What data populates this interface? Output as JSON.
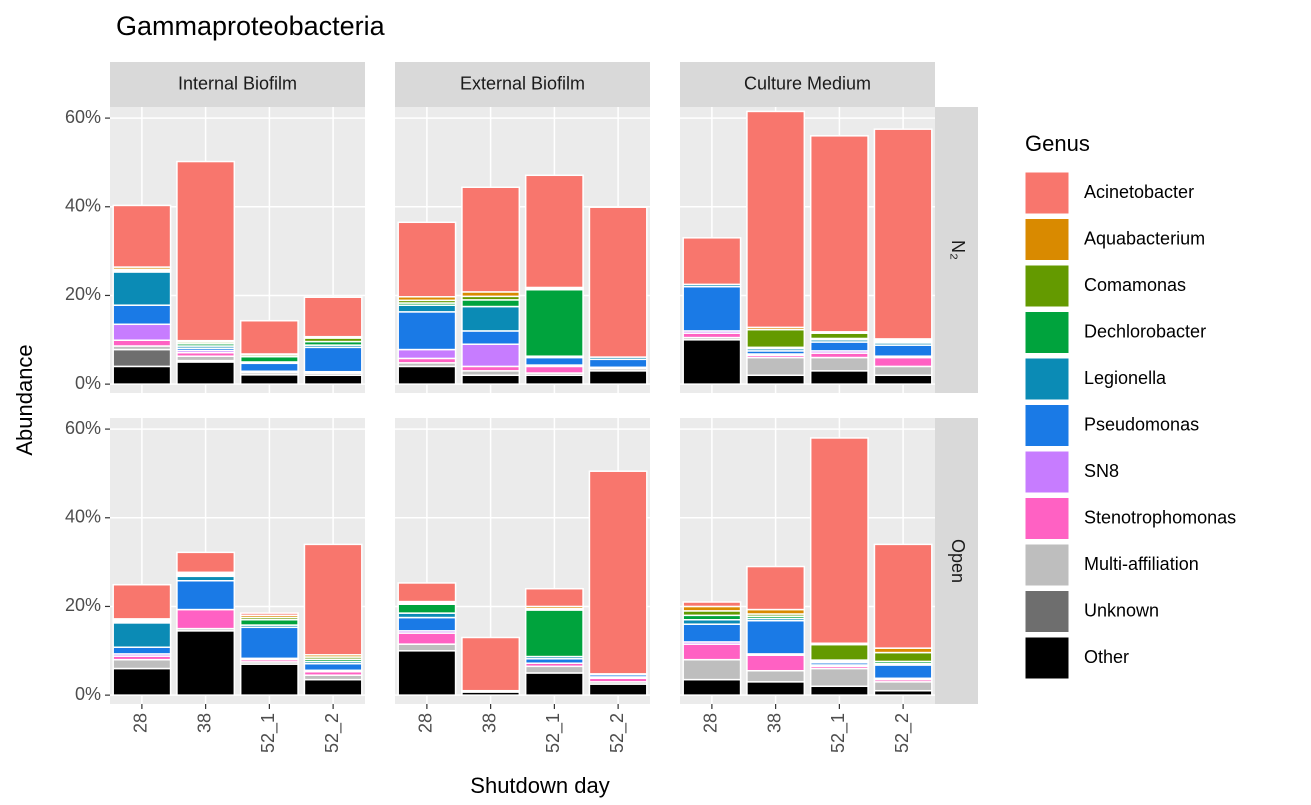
{
  "chart_data": {
    "type": "bar",
    "stacked": true,
    "title": "Gammaproteobacteria",
    "xlabel": "Shutdown day",
    "ylabel": "Abundance",
    "legend_title": "Genus",
    "legend_position": "right",
    "grid": true,
    "categories": [
      "28",
      "38",
      "52_1",
      "52_2"
    ],
    "columns": [
      "Internal Biofilm",
      "External Biofilm",
      "Culture Medium"
    ],
    "rows": [
      "N₂",
      "Open"
    ],
    "ylim": [
      -2,
      62.5
    ],
    "yticks": [
      {
        "value": 0,
        "label": "0%"
      },
      {
        "value": 20,
        "label": "20%"
      },
      {
        "value": 40,
        "label": "40%"
      },
      {
        "value": 60,
        "label": "60%"
      }
    ],
    "series": [
      {
        "name": "Acinetobacter",
        "color": "#f8766d"
      },
      {
        "name": "Aquabacterium",
        "color": "#d98a00"
      },
      {
        "name": "Comamonas",
        "color": "#649a00"
      },
      {
        "name": "Dechlorobacter",
        "color": "#00a33d"
      },
      {
        "name": "Legionella",
        "color": "#0b8bb5"
      },
      {
        "name": "Pseudomonas",
        "color": "#1a7ae6"
      },
      {
        "name": "SN8",
        "color": "#c77cff"
      },
      {
        "name": "Stenotrophomonas",
        "color": "#ff61c3"
      },
      {
        "name": "Multi-affiliation",
        "color": "#bebebe"
      },
      {
        "name": "Unknown",
        "color": "#6e6e6e"
      },
      {
        "name": "Other",
        "color": "#000000"
      }
    ],
    "panels": [
      {
        "values": [
          [
            13.9,
            0.5,
            0.3,
            0.3,
            7.5,
            4.3,
            3.6,
            1.3,
            0.8,
            3.8,
            4
          ],
          [
            40.4,
            0.3,
            0.4,
            0.5,
            0.5,
            0.5,
            0.5,
            0.8,
            1,
            0.3,
            5
          ],
          [
            7.5,
            0.2,
            0.4,
            1.2,
            0.3,
            1.8,
            0,
            0.3,
            0.5,
            0,
            2.1
          ],
          [
            8.9,
            0.3,
            0.8,
            0.8,
            0.5,
            5.5,
            0,
            0.3,
            0.5,
            0,
            2
          ]
        ]
      },
      {
        "values": [
          [
            16.8,
            0.8,
            0.6,
            0.5,
            1.5,
            8.5,
            2,
            1,
            0.8,
            0,
            4
          ],
          [
            23.6,
            1,
            0.8,
            1.5,
            5.5,
            3,
            5,
            1,
            1,
            0,
            2
          ],
          [
            25.3,
            0.2,
            0.3,
            15,
            0.3,
            1.7,
            0.3,
            1.5,
            0.5,
            0,
            2
          ],
          [
            33.8,
            0,
            0,
            0,
            0.5,
            1.8,
            0,
            0.3,
            0.5,
            0,
            3
          ]
        ]
      },
      {
        "values": [
          [
            10.5,
            0,
            0,
            0,
            0.5,
            10,
            0.5,
            1,
            0.5,
            0,
            10
          ],
          [
            48.7,
            0.5,
            4,
            0.3,
            0.5,
            0.7,
            0.3,
            0.5,
            4,
            0,
            2
          ],
          [
            44.2,
            0.3,
            1.2,
            0.3,
            0.5,
            2,
            0.5,
            1,
            3,
            0,
            3
          ],
          [
            47.3,
            0.3,
            0.3,
            0.3,
            0.5,
            2.5,
            0.3,
            2,
            2,
            0,
            2
          ]
        ]
      },
      {
        "values": [
          [
            7.7,
            0.3,
            0.3,
            0.3,
            5.5,
            1.5,
            0.5,
            0.8,
            2,
            0,
            6
          ],
          [
            4.5,
            0.3,
            0.3,
            0.3,
            1,
            6.5,
            0,
            4.3,
            0.5,
            0,
            14.5
          ],
          [
            0.5,
            0.5,
            0.5,
            1.2,
            0.5,
            7,
            0.3,
            0.5,
            0.5,
            0,
            7
          ],
          [
            24.9,
            0.5,
            0.5,
            0.5,
            0.5,
            1.5,
            0.3,
            0.8,
            1,
            0,
            3.5
          ]
        ]
      },
      {
        "values": [
          [
            4.2,
            0.3,
            0.3,
            2,
            1,
            3,
            0.5,
            2.5,
            1.5,
            0,
            10
          ],
          [
            12,
            0,
            0,
            0,
            0,
            0,
            0,
            0,
            0.3,
            0,
            0.7
          ],
          [
            4,
            0.5,
            0.3,
            10.5,
            0.5,
            1,
            0,
            0.7,
            1.5,
            0,
            5
          ],
          [
            45.7,
            0,
            0,
            0,
            0.2,
            0.5,
            0.3,
            0.8,
            0.5,
            0,
            2.5
          ]
        ]
      },
      {
        "values": [
          [
            1,
            1,
            1,
            1,
            1,
            4,
            0.5,
            3.5,
            4.5,
            0,
            3.5
          ],
          [
            9.7,
            1,
            0.5,
            0.5,
            0.5,
            7.5,
            0.3,
            3.5,
            2.5,
            0,
            3
          ],
          [
            46.3,
            0.3,
            3.5,
            0.3,
            0.3,
            0.5,
            0.3,
            0.5,
            4,
            0,
            2
          ],
          [
            23.4,
            1,
            2,
            0.5,
            0.3,
            3,
            0.3,
            0.5,
            2,
            0,
            1
          ]
        ]
      }
    ]
  }
}
